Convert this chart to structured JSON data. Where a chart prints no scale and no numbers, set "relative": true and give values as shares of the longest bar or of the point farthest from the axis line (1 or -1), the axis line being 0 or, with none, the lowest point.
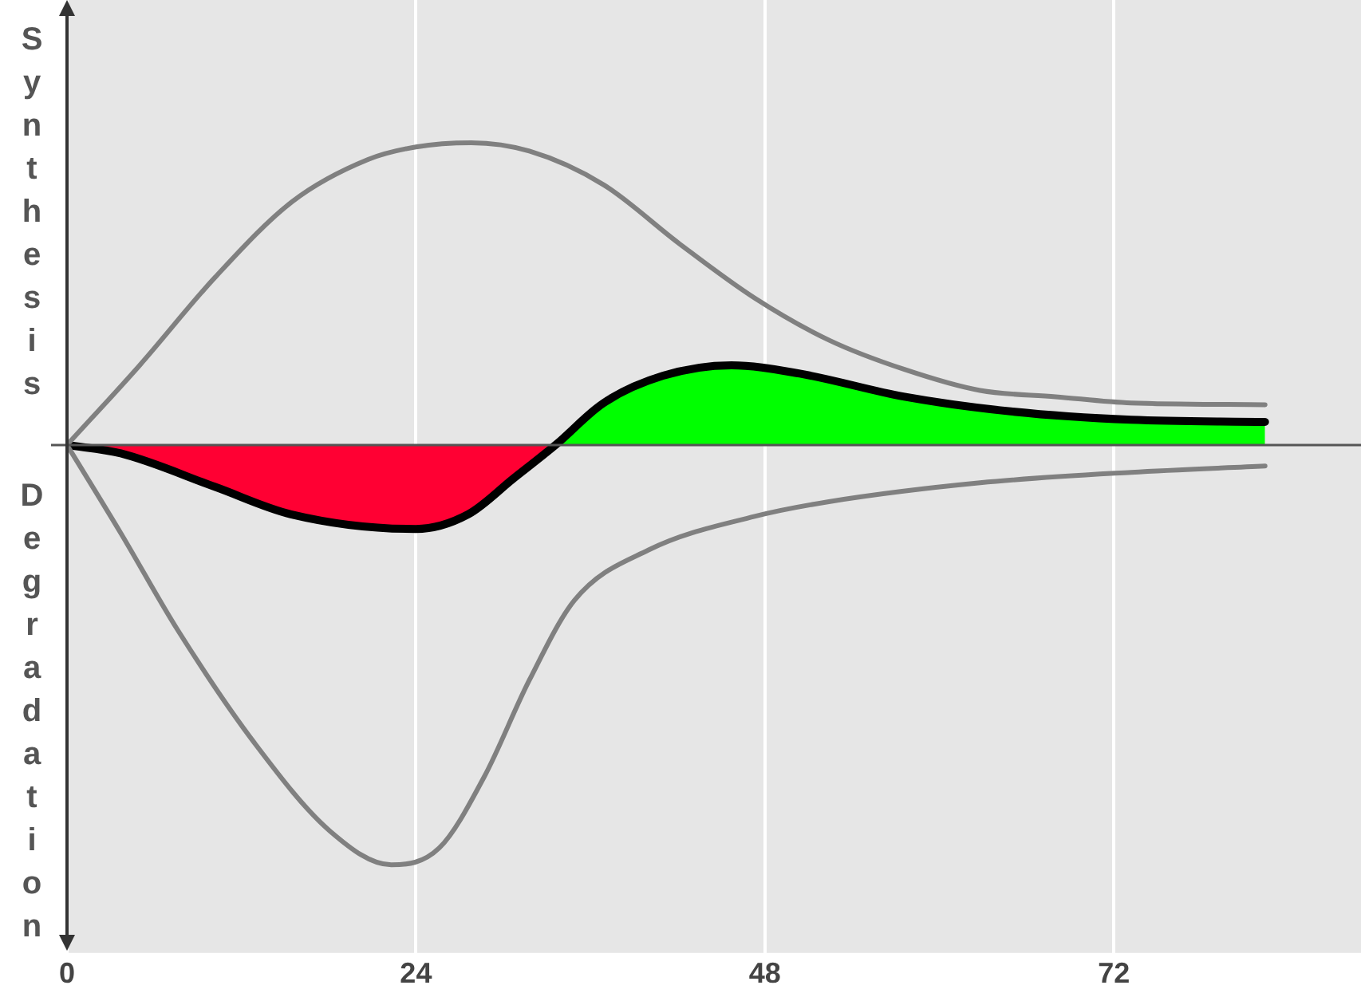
{
  "chart_data": {
    "type": "line",
    "relative": true,
    "xlim": [
      0,
      89
    ],
    "xticks": [
      0,
      24,
      48,
      72
    ],
    "grid": "x",
    "legend": false,
    "marker": "none",
    "annotations": [
      "Synthesis",
      "Degradation"
    ],
    "series": [
      {
        "color": "#808080",
        "x": [
          0,
          5,
          10.2,
          15.5,
          20.7,
          24,
          27.8,
          31.8,
          36.9,
          42.1,
          47.3,
          52.4,
          57.6,
          62.8,
          68,
          73.2,
          82.4
        ],
        "values": [
          0,
          0.19,
          0.4,
          0.58,
          0.68,
          0.71,
          0.72,
          0.7,
          0.62,
          0.48,
          0.35,
          0.25,
          0.18,
          0.13,
          0.115,
          0.1,
          0.096
        ]
      },
      {
        "color": "#808080",
        "x": [
          0,
          3.7,
          7.6,
          12.9,
          18.1,
          22.3,
          25.6,
          28.7,
          31.8,
          34.9,
          40,
          47.3,
          52.4,
          62.8,
          73.2,
          82.4
        ],
        "values": [
          0,
          -0.21,
          -0.44,
          -0.71,
          -0.92,
          -1,
          -0.96,
          -0.79,
          -0.56,
          -0.37,
          -0.25,
          -0.17,
          -0.135,
          -0.09,
          -0.065,
          -0.05
        ]
      },
      {
        "color": "#000000",
        "x": [
          0,
          3.7,
          10.2,
          15.4,
          24,
          27.6,
          30.7,
          33.6,
          36.9,
          41,
          45.7,
          50.4,
          57.6,
          64.9,
          73.2,
          82.4
        ],
        "values": [
          0,
          -0.02,
          -0.1,
          -0.165,
          -0.2,
          -0.165,
          -0.08,
          0,
          0.1,
          0.165,
          0.19,
          0.17,
          0.115,
          0.08,
          0.06,
          0.055
        ]
      },
      {
        "type": "area",
        "color": "#ff0033",
        "x": [
          0,
          3.7,
          10.2,
          15.4,
          24,
          27.6,
          30.7,
          33.6
        ],
        "values": [
          0,
          -0.02,
          -0.1,
          -0.165,
          -0.2,
          -0.165,
          -0.08,
          0
        ]
      },
      {
        "type": "area",
        "color": "#00ff00",
        "x": [
          33.6,
          36.9,
          41,
          45.7,
          50.4,
          57.6,
          64.9,
          73.2,
          82.4
        ],
        "values": [
          0,
          0.1,
          0.165,
          0.19,
          0.17,
          0.115,
          0.08,
          0.06,
          0.055
        ]
      }
    ]
  }
}
